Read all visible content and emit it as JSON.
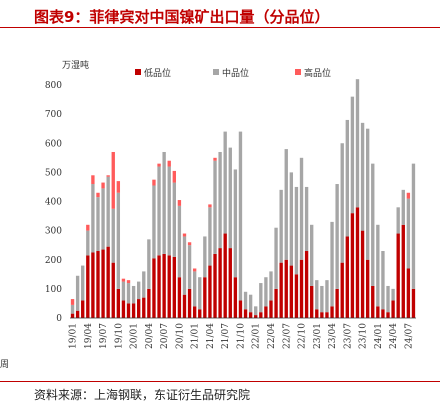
{
  "title": "图表9：菲律宾对中国镍矿出口量（分品位）",
  "source": "资料来源：上海钢联，东证衍生品研究院",
  "edge_text": "周",
  "colors": {
    "title": "#c00000",
    "low": "#c00000",
    "mid": "#a6a6a6",
    "high": "#ff5b5b"
  },
  "chart_data": {
    "type": "bar",
    "stacked": true,
    "ylabel": "万湿吨",
    "ylim": [
      0,
      800
    ],
    "yticks": [
      0,
      100,
      200,
      300,
      400,
      500,
      600,
      700,
      800
    ],
    "grid": false,
    "legend_position": "top",
    "x_tick_labels": [
      "19/01",
      "19/04",
      "19/07",
      "19/10",
      "20/01",
      "20/04",
      "20/07",
      "20/10",
      "21/01",
      "21/04",
      "21/07",
      "21/10",
      "22/01",
      "22/04",
      "22/07",
      "22/10",
      "23/01",
      "23/04",
      "23/07",
      "23/10",
      "24/01",
      "24/04",
      "24/07"
    ],
    "x": [
      "19/01",
      "19/02",
      "19/03",
      "19/04",
      "19/05",
      "19/06",
      "19/07",
      "19/08",
      "19/09",
      "19/10",
      "19/11",
      "19/12",
      "20/01",
      "20/02",
      "20/03",
      "20/04",
      "20/05",
      "20/06",
      "20/07",
      "20/08",
      "20/09",
      "20/10",
      "20/11",
      "20/12",
      "21/01",
      "21/02",
      "21/03",
      "21/04",
      "21/05",
      "21/06",
      "21/07",
      "21/08",
      "21/09",
      "21/10",
      "21/11",
      "21/12",
      "22/01",
      "22/02",
      "22/03",
      "22/04",
      "22/05",
      "22/06",
      "22/07",
      "22/08",
      "22/09",
      "22/10",
      "22/11",
      "22/12",
      "23/01",
      "23/02",
      "23/03",
      "23/04",
      "23/05",
      "23/06",
      "23/07",
      "23/08",
      "23/09",
      "23/10",
      "23/11",
      "23/12",
      "24/01",
      "24/02",
      "24/03",
      "24/04",
      "24/05",
      "24/06",
      "24/07",
      "24/08"
    ],
    "series": [
      {
        "name": "低品位",
        "values": [
          15,
          25,
          60,
          215,
          225,
          230,
          235,
          245,
          190,
          100,
          60,
          50,
          50,
          65,
          70,
          100,
          205,
          215,
          220,
          215,
          210,
          140,
          80,
          100,
          40,
          30,
          140,
          180,
          220,
          240,
          290,
          240,
          140,
          60,
          30,
          20,
          10,
          20,
          40,
          60,
          100,
          190,
          200,
          180,
          150,
          200,
          230,
          110,
          30,
          20,
          20,
          40,
          100,
          190,
          280,
          360,
          380,
          300,
          200,
          110,
          40,
          30,
          20,
          60,
          290,
          320,
          170,
          100
        ]
      },
      {
        "name": "中品位",
        "values": [
          30,
          120,
          120,
          85,
          235,
          185,
          210,
          240,
          185,
          330,
          65,
          70,
          60,
          60,
          90,
          170,
          250,
          305,
          350,
          305,
          255,
          245,
          200,
          150,
          120,
          110,
          140,
          200,
          320,
          330,
          350,
          345,
          370,
          580,
          60,
          60,
          30,
          100,
          100,
          100,
          210,
          250,
          380,
          320,
          300,
          350,
          220,
          210,
          100,
          90,
          110,
          290,
          360,
          410,
          400,
          400,
          440,
          370,
          450,
          420,
          280,
          200,
          90,
          40,
          90,
          120,
          240,
          430
        ]
      },
      {
        "name": "高品位",
        "values": [
          20,
          0,
          0,
          20,
          30,
          15,
          20,
          5,
          195,
          40,
          10,
          10,
          0,
          0,
          0,
          0,
          20,
          10,
          0,
          20,
          40,
          20,
          10,
          10,
          10,
          0,
          0,
          10,
          10,
          0,
          0,
          0,
          0,
          0,
          0,
          0,
          0,
          0,
          0,
          0,
          0,
          0,
          0,
          0,
          0,
          0,
          0,
          0,
          0,
          0,
          0,
          0,
          0,
          0,
          0,
          0,
          0,
          0,
          0,
          0,
          0,
          0,
          0,
          0,
          0,
          0,
          20,
          0
        ]
      }
    ]
  }
}
